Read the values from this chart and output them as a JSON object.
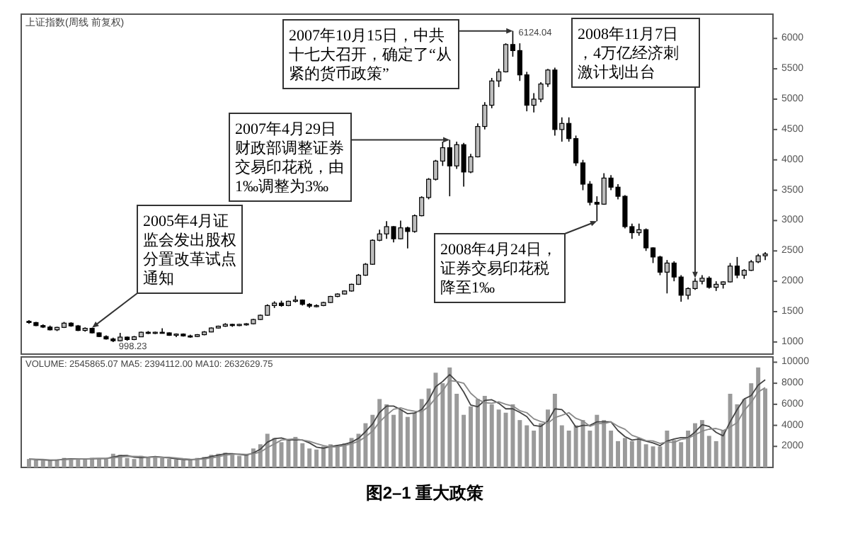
{
  "chart_data": [
    {
      "type": "candlestick",
      "title": "上证指数(周线 前复权)",
      "ylim": [
        800,
        6400
      ],
      "yticks": [
        1000,
        1500,
        2000,
        2500,
        3000,
        3500,
        4000,
        4500,
        5000,
        5500,
        6000
      ],
      "tick_labels": "y",
      "categories": [
        null,
        null,
        null,
        null,
        null,
        null,
        null,
        null,
        null,
        null,
        null,
        null,
        null,
        null,
        null,
        null,
        null,
        null,
        null,
        null,
        null,
        null,
        null,
        null,
        null,
        null,
        null,
        null,
        null,
        null,
        null,
        null,
        null,
        null,
        null,
        null,
        null,
        null,
        null,
        null,
        null,
        null,
        null,
        null,
        null,
        null,
        null,
        null,
        null,
        null,
        null,
        null,
        null,
        null,
        null,
        null,
        null,
        null,
        null,
        null,
        null,
        null,
        null,
        null,
        null,
        null,
        null,
        null,
        null,
        null,
        null,
        null,
        null,
        null,
        null,
        null,
        null,
        null,
        null,
        null,
        null,
        null,
        null,
        null,
        null,
        null,
        null,
        null,
        null,
        null,
        null,
        null,
        null,
        null,
        null,
        null,
        null,
        null,
        null,
        null,
        null,
        null,
        null,
        null,
        null,
        null
      ],
      "ohlc": [
        [
          1340,
          1360,
          1300,
          1320
        ],
        [
          1320,
          1330,
          1260,
          1270
        ],
        [
          1270,
          1290,
          1230,
          1245
        ],
        [
          1245,
          1270,
          1190,
          1200
        ],
        [
          1200,
          1250,
          1180,
          1240
        ],
        [
          1240,
          1330,
          1230,
          1310
        ],
        [
          1310,
          1325,
          1250,
          1265
        ],
        [
          1265,
          1280,
          1180,
          1190
        ],
        [
          1190,
          1240,
          1170,
          1225
        ],
        [
          1225,
          1235,
          1140,
          1150
        ],
        [
          1150,
          1160,
          1080,
          1090
        ],
        [
          1090,
          1110,
          1040,
          1050
        ],
        [
          1050,
          1070,
          998.23,
          1020
        ],
        [
          1020,
          1150,
          1010,
          1080
        ],
        [
          1080,
          1090,
          1020,
          1040
        ],
        [
          1040,
          1100,
          1030,
          1085
        ],
        [
          1085,
          1170,
          1080,
          1160
        ],
        [
          1160,
          1180,
          1130,
          1150
        ],
        [
          1150,
          1170,
          1130,
          1160
        ],
        [
          1160,
          1225,
          1140,
          1150
        ],
        [
          1150,
          1160,
          1100,
          1110
        ],
        [
          1110,
          1140,
          1080,
          1130
        ],
        [
          1130,
          1140,
          1090,
          1100
        ],
        [
          1100,
          1120,
          1070,
          1090
        ],
        [
          1090,
          1130,
          1080,
          1120
        ],
        [
          1120,
          1180,
          1110,
          1165
        ],
        [
          1165,
          1240,
          1160,
          1230
        ],
        [
          1230,
          1270,
          1220,
          1260
        ],
        [
          1260,
          1310,
          1250,
          1290
        ],
        [
          1290,
          1300,
          1250,
          1270
        ],
        [
          1270,
          1300,
          1260,
          1290
        ],
        [
          1290,
          1310,
          1270,
          1300
        ],
        [
          1300,
          1380,
          1290,
          1370
        ],
        [
          1370,
          1450,
          1360,
          1440
        ],
        [
          1440,
          1620,
          1430,
          1600
        ],
        [
          1600,
          1670,
          1560,
          1640
        ],
        [
          1640,
          1680,
          1580,
          1600
        ],
        [
          1600,
          1680,
          1590,
          1670
        ],
        [
          1670,
          1760,
          1650,
          1690
        ],
        [
          1690,
          1700,
          1600,
          1620
        ],
        [
          1620,
          1640,
          1560,
          1590
        ],
        [
          1590,
          1620,
          1570,
          1600
        ],
        [
          1600,
          1660,
          1590,
          1650
        ],
        [
          1650,
          1760,
          1640,
          1750
        ],
        [
          1750,
          1800,
          1740,
          1790
        ],
        [
          1790,
          1850,
          1780,
          1840
        ],
        [
          1840,
          1960,
          1830,
          1950
        ],
        [
          1950,
          2120,
          1940,
          2100
        ],
        [
          2100,
          2300,
          2090,
          2280
        ],
        [
          2280,
          2690,
          2270,
          2675
        ],
        [
          2675,
          2850,
          2660,
          2780
        ],
        [
          2780,
          2990,
          2700,
          2900
        ],
        [
          2900,
          2910,
          2640,
          2700
        ],
        [
          2700,
          3000,
          2690,
          2880
        ],
        [
          2880,
          2900,
          2540,
          2820
        ],
        [
          2820,
          3100,
          2800,
          3080
        ],
        [
          3080,
          3400,
          3070,
          3380
        ],
        [
          3380,
          3700,
          3350,
          3680
        ],
        [
          3680,
          4000,
          3660,
          3980
        ],
        [
          3980,
          4300,
          3900,
          4200
        ],
        [
          4200,
          4330,
          3400,
          3900
        ],
        [
          3900,
          4300,
          3850,
          4250
        ],
        [
          4250,
          4280,
          3560,
          3800
        ],
        [
          3800,
          4100,
          3780,
          4050
        ],
        [
          4050,
          4600,
          4040,
          4550
        ],
        [
          4550,
          4950,
          4500,
          4900
        ],
        [
          4900,
          5350,
          4850,
          5300
        ],
        [
          5300,
          5500,
          5200,
          5450
        ],
        [
          5450,
          5920,
          5440,
          5900
        ],
        [
          5900,
          6124.04,
          5700,
          5800
        ],
        [
          5800,
          5920,
          5300,
          5400
        ],
        [
          5400,
          5450,
          4800,
          4900
        ],
        [
          4900,
          5100,
          4780,
          5000
        ],
        [
          5000,
          5280,
          4950,
          5250
        ],
        [
          5250,
          5500,
          5200,
          5480
        ],
        [
          5480,
          5520,
          4400,
          4500
        ],
        [
          4500,
          4700,
          4300,
          4600
        ],
        [
          4600,
          4700,
          4300,
          4350
        ],
        [
          4350,
          4400,
          3900,
          3950
        ],
        [
          3950,
          4000,
          3500,
          3600
        ],
        [
          3600,
          3650,
          3250,
          3300
        ],
        [
          3300,
          3400,
          2990,
          3270
        ],
        [
          3270,
          3780,
          3260,
          3700
        ],
        [
          3700,
          3750,
          3500,
          3550
        ],
        [
          3550,
          3600,
          3350,
          3400
        ],
        [
          3400,
          3420,
          2870,
          2900
        ],
        [
          2900,
          2950,
          2700,
          2800
        ],
        [
          2800,
          2950,
          2750,
          2850
        ],
        [
          2850,
          2870,
          2500,
          2550
        ],
        [
          2550,
          2560,
          2300,
          2400
        ],
        [
          2400,
          2420,
          2100,
          2150
        ],
        [
          2150,
          2350,
          1800,
          2300
        ],
        [
          2300,
          2330,
          2000,
          2070
        ],
        [
          2070,
          2100,
          1664,
          1770
        ],
        [
          1770,
          1900,
          1700,
          1880
        ],
        [
          1880,
          2050,
          1860,
          2000
        ],
        [
          2000,
          2100,
          1950,
          2050
        ],
        [
          2050,
          2080,
          1880,
          1900
        ],
        [
          1900,
          2000,
          1840,
          1950
        ],
        [
          1950,
          2000,
          1880,
          1990
        ],
        [
          1990,
          2300,
          1980,
          2250
        ],
        [
          2250,
          2400,
          2050,
          2100
        ],
        [
          2100,
          2200,
          2040,
          2180
        ],
        [
          2180,
          2350,
          2170,
          2320
        ],
        [
          2320,
          2450,
          2300,
          2420
        ],
        [
          2420,
          2480,
          2350,
          2450
        ]
      ],
      "annotations": [
        {
          "text": "998.23",
          "y": 998.23
        },
        "2005年4月证监会发出股权分置改革试点通知",
        "2007年4月29日财政部调整证券交易印花税，由1‰调整为3‰",
        "2007年10月15日，中共十七大召开，确定了“从紧的货币政策”",
        "6124.04",
        "2008年4月24日，证券交易印花税降至1‰",
        "2008年11月7日，4万亿经济刺激计划出台"
      ]
    },
    {
      "type": "bar",
      "subtitle": "VOLUME: 2545865.07 MA5: 2394112.00 MA10: 2632629.75",
      "ylim": [
        0,
        10500
      ],
      "yticks": [
        2000,
        4000,
        6000,
        8000,
        10000
      ],
      "tick_labels": "y",
      "categories": [
        null,
        null,
        null,
        null,
        null,
        null,
        null,
        null,
        null,
        null,
        null,
        null,
        null,
        null,
        null,
        null,
        null,
        null,
        null,
        null,
        null,
        null,
        null,
        null,
        null,
        null,
        null,
        null,
        null,
        null,
        null,
        null,
        null,
        null,
        null,
        null,
        null,
        null,
        null,
        null,
        null,
        null,
        null,
        null,
        null,
        null,
        null,
        null,
        null,
        null,
        null,
        null,
        null,
        null,
        null,
        null,
        null,
        null,
        null,
        null,
        null,
        null,
        null,
        null,
        null,
        null,
        null,
        null,
        null,
        null,
        null,
        null,
        null,
        null,
        null,
        null,
        null,
        null,
        null,
        null,
        null,
        null,
        null,
        null,
        null,
        null,
        null,
        null,
        null,
        null,
        null,
        null,
        null,
        null,
        null,
        null,
        null,
        null,
        null,
        null,
        null,
        null,
        null,
        null,
        null,
        null
      ],
      "series": [
        {
          "color": "#9a9a9a",
          "values": [
            800,
            700,
            650,
            700,
            750,
            900,
            800,
            750,
            850,
            900,
            800,
            850,
            1300,
            1200,
            900,
            800,
            1100,
            1000,
            1000,
            900,
            800,
            750,
            700,
            750,
            900,
            1000,
            1200,
            1300,
            1400,
            1200,
            1100,
            1200,
            1800,
            2200,
            3200,
            2800,
            2400,
            2600,
            2900,
            2300,
            1800,
            1700,
            2000,
            2200,
            2100,
            2300,
            2800,
            3200,
            4200,
            5000,
            6500,
            6000,
            5000,
            5500,
            4800,
            5200,
            6500,
            7500,
            9000,
            8000,
            9500,
            7000,
            5000,
            5800,
            6500,
            6800,
            6000,
            5500,
            5200,
            6000,
            4500,
            4000,
            3500,
            4200,
            5500,
            7000,
            4000,
            3500,
            4000,
            4500,
            3500,
            5000,
            4500,
            3500,
            2500,
            2800,
            2500,
            2800,
            2200,
            2000,
            2000,
            3500,
            2600,
            2400,
            3500,
            4200,
            4500,
            3000,
            2500,
            3500,
            7000,
            6000,
            6500,
            8000,
            9500,
            7500
          ]
        },
        {
          "type": "line",
          "color": "#444444",
          "values": [
            800,
            750,
            720,
            680,
            700,
            780,
            820,
            820,
            800,
            830,
            850,
            850,
            980,
            1120,
            1130,
            970,
            930,
            970,
            1030,
            970,
            900,
            820,
            750,
            730,
            780,
            880,
            1030,
            1170,
            1300,
            1300,
            1230,
            1170,
            1370,
            1730,
            2400,
            2730,
            2800,
            2600,
            2630,
            2600,
            2330,
            1930,
            1830,
            1970,
            2100,
            2200,
            2400,
            2770,
            3400,
            4130,
            5230,
            5830,
            5830,
            5500,
            5100,
            5170,
            5500,
            6400,
            7670,
            8170,
            8830,
            8170,
            7170,
            5930,
            5770,
            6370,
            6430,
            6100,
            5570,
            5570,
            5230,
            4830,
            4000,
            3900,
            4400,
            5570,
            5500,
            4830,
            3830,
            4000,
            4000,
            4330,
            4330,
            4330,
            3500,
            2930,
            2600,
            2700,
            2500,
            2330,
            2070,
            2500,
            2700,
            2830,
            2830,
            3370,
            4070,
            3900,
            3330,
            3000,
            4330,
            5500,
            6500,
            6830,
            7830,
            8330
          ]
        },
        {
          "type": "line",
          "color": "#8a8a8a",
          "values": [
            800,
            780,
            760,
            715,
            710,
            730,
            760,
            800,
            810,
            825,
            840,
            850,
            915,
            985,
            1055,
            1045,
            1030,
            970,
            980,
            970,
            965,
            895,
            825,
            775,
            765,
            805,
            905,
            1025,
            1165,
            1235,
            1265,
            1235,
            1300,
            1450,
            1885,
            2230,
            2600,
            2665,
            2715,
            2600,
            2480,
            2265,
            2080,
            1950,
            1965,
            2085,
            2250,
            2485,
            2900,
            3450,
            4315,
            4980,
            5530,
            5665,
            5465,
            5335,
            5300,
            5785,
            6585,
            7285,
            8250,
            8170,
            8000,
            7050,
            6470,
            6150,
            6100,
            6235,
            6000,
            5835,
            5400,
            5200,
            4615,
            4365,
            4200,
            4735,
            4950,
            5200,
            4665,
            4415,
            3915,
            4165,
            4165,
            4330,
            3915,
            3630,
            3050,
            2815,
            2550,
            2515,
            2285,
            2415,
            2385,
            2665,
            2765,
            3100,
            3450,
            3635,
            3700,
            3500,
            3830,
            4250,
            5415,
            6170,
            7165,
            7580
          ]
        }
      ],
      "annotations": [
        "图2–1 重大政策"
      ]
    }
  ]
}
